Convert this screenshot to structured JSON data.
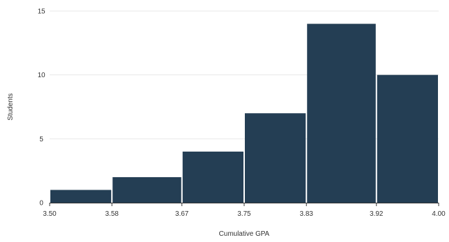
{
  "chart_data": {
    "type": "bar",
    "title": "",
    "xlabel": "Cumulative GPA",
    "ylabel": "Students",
    "bins": [
      {
        "start": 3.5,
        "end": 3.58,
        "value": 1
      },
      {
        "start": 3.58,
        "end": 3.67,
        "value": 2
      },
      {
        "start": 3.67,
        "end": 3.75,
        "value": 4
      },
      {
        "start": 3.75,
        "end": 3.83,
        "value": 7
      },
      {
        "start": 3.83,
        "end": 3.92,
        "value": 14
      },
      {
        "start": 3.92,
        "end": 4.0,
        "value": 10
      }
    ],
    "x_ticks": [
      "3.50",
      "3.58",
      "3.67",
      "3.75",
      "3.83",
      "3.92",
      "4.00"
    ],
    "y_ticks": [
      "0",
      "5",
      "10",
      "15"
    ],
    "ylim": [
      0,
      15
    ],
    "xlim": [
      3.5,
      4.0
    ],
    "grid": true,
    "legend": "none",
    "bar_color": "#243e54",
    "bar_edge_color": "#ffffff",
    "grid_color": "#e7e7e7",
    "axis_color": "#333333"
  }
}
